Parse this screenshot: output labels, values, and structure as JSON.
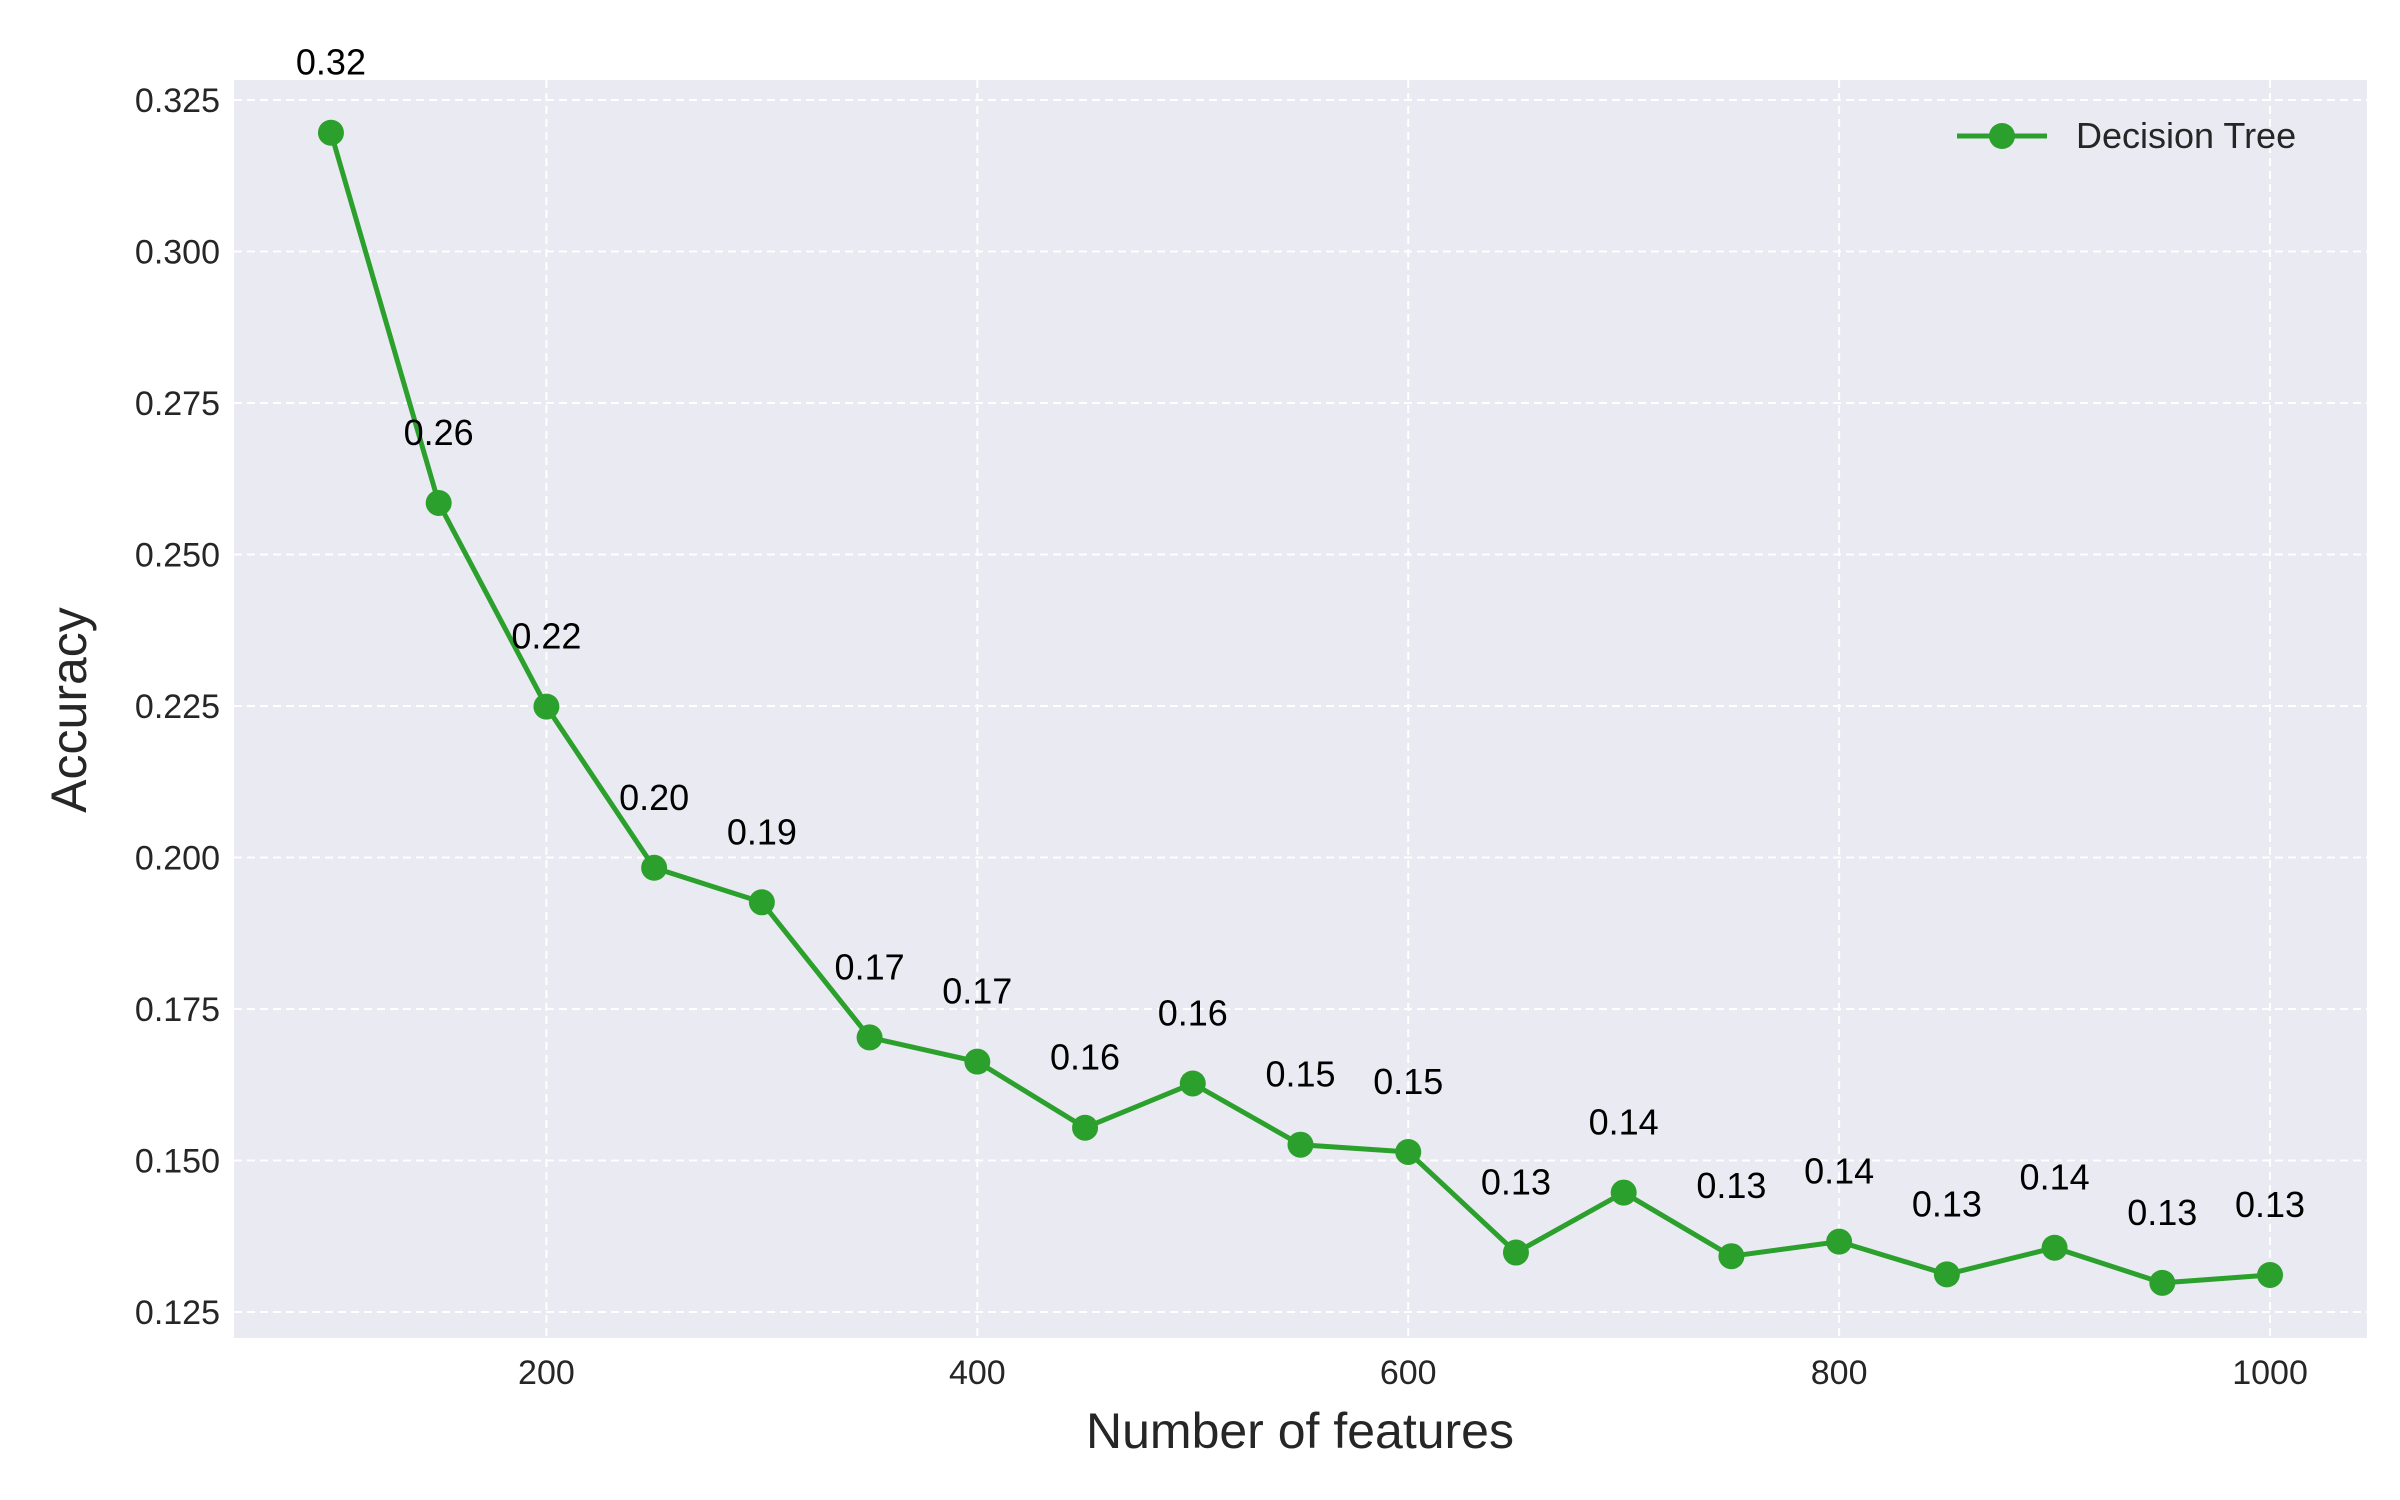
{
  "chart_data": {
    "type": "line",
    "xlabel": "Number of features",
    "ylabel": "Accuracy",
    "xlim": [
      55,
      1045
    ],
    "ylim": [
      0.1207,
      0.3283
    ],
    "xticks": [
      200,
      400,
      600,
      800,
      1000
    ],
    "xtick_labels": [
      "200",
      "400",
      "600",
      "800",
      "1000"
    ],
    "yticks": [
      0.125,
      0.15,
      0.175,
      0.2,
      0.225,
      0.25,
      0.275,
      0.3,
      0.325
    ],
    "ytick_labels": [
      "0.125",
      "0.150",
      "0.175",
      "0.200",
      "0.225",
      "0.250",
      "0.275",
      "0.300",
      "0.325"
    ],
    "grid": true,
    "legend_position": "top-right",
    "series": [
      {
        "name": "Decision Tree",
        "color": "#2ca02c",
        "marker": "circle",
        "x": [
          100,
          150,
          200,
          250,
          300,
          350,
          400,
          450,
          500,
          550,
          600,
          650,
          700,
          750,
          800,
          850,
          900,
          950,
          1000
        ],
        "values": [
          0.3196,
          0.2585,
          0.2249,
          0.1983,
          0.1926,
          0.1703,
          0.1663,
          0.1554,
          0.1627,
          0.1526,
          0.1514,
          0.1348,
          0.1447,
          0.1342,
          0.1366,
          0.1312,
          0.1356,
          0.1298,
          0.1311
        ],
        "labels": [
          "0.32",
          "0.26",
          "0.22",
          "0.20",
          "0.19",
          "0.17",
          "0.17",
          "0.16",
          "0.16",
          "0.15",
          "0.15",
          "0.13",
          "0.14",
          "0.13",
          "0.14",
          "0.13",
          "0.14",
          "0.13",
          "0.13"
        ]
      }
    ]
  }
}
